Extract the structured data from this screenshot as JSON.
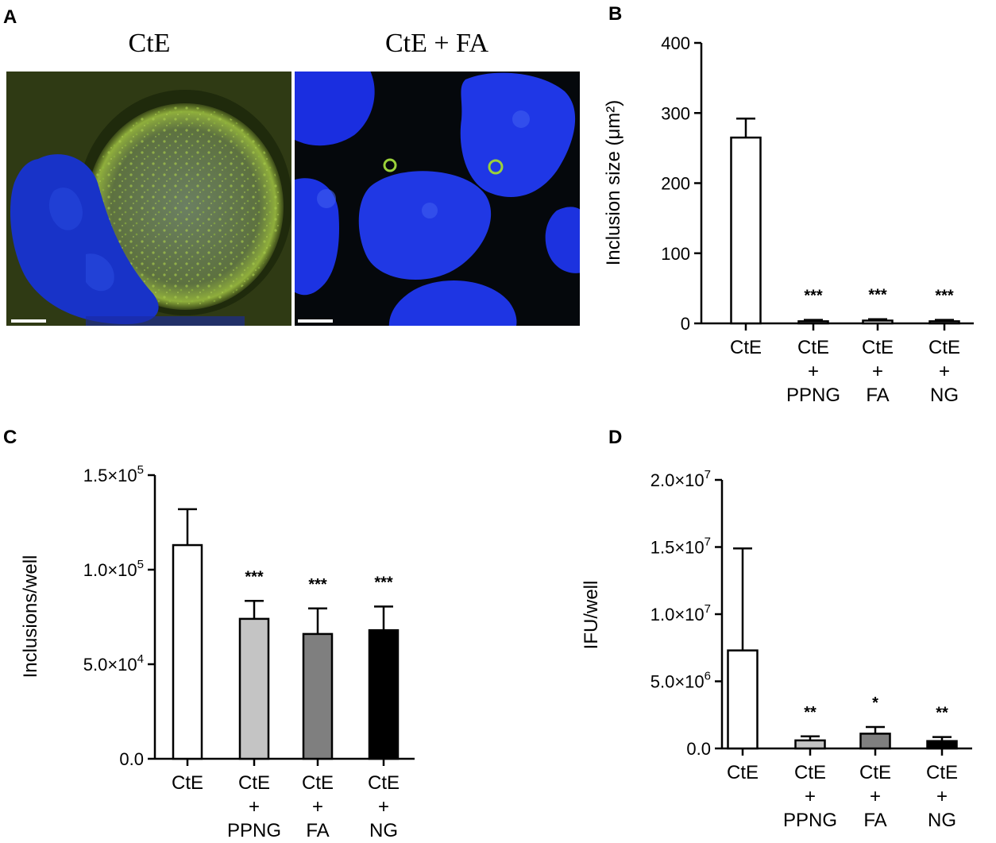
{
  "panels": {
    "A": "A",
    "B": "B",
    "C": "C",
    "D": "D"
  },
  "micrographs": [
    {
      "title": "CtE",
      "stain_colors": {
        "nucleus": "#1833c8",
        "inclusion": "#8fae3c"
      }
    },
    {
      "title": "CtE + FA",
      "stain_colors": {
        "nucleus": "#1a2ee0",
        "inclusion": "#9bd13a"
      }
    }
  ],
  "chart_data": [
    {
      "id": "B",
      "type": "bar",
      "ylabel": "Inclusion size (μm²)",
      "ylim": [
        0,
        400
      ],
      "yticks": [
        "0",
        "100",
        "200",
        "300",
        "400"
      ],
      "ytick_values": [
        0,
        100,
        200,
        300,
        400
      ],
      "categories": [
        [
          "CtE"
        ],
        [
          "CtE",
          "+",
          "PPNG"
        ],
        [
          "CtE",
          "+",
          "FA"
        ],
        [
          "CtE",
          "+",
          "NG"
        ]
      ],
      "values": [
        265,
        3,
        4,
        3
      ],
      "errors": [
        27,
        2,
        2,
        2
      ],
      "significance": [
        "",
        "***",
        "***",
        "***"
      ],
      "bar_colors": [
        "#ffffff",
        "#ffffff",
        "#ffffff",
        "#ffffff"
      ]
    },
    {
      "id": "C",
      "type": "bar",
      "ylabel": "Inclusions/well",
      "ylim": [
        0,
        150000
      ],
      "yticks": [
        [
          "0.0",
          ""
        ],
        [
          "5.0×10",
          "4"
        ],
        [
          "1.0×10",
          "5"
        ],
        [
          "1.5×10",
          "5"
        ]
      ],
      "ytick_values": [
        0,
        50000,
        100000,
        150000
      ],
      "categories": [
        [
          "CtE"
        ],
        [
          "CtE",
          "+",
          "PPNG"
        ],
        [
          "CtE",
          "+",
          "FA"
        ],
        [
          "CtE",
          "+",
          "NG"
        ]
      ],
      "values": [
        113000,
        74000,
        66000,
        68000
      ],
      "errors": [
        19000,
        9500,
        13500,
        12500
      ],
      "significance": [
        "",
        "***",
        "***",
        "***"
      ],
      "bar_colors": [
        "#ffffff",
        "#c4c4c4",
        "#7f7f7f",
        "#000000"
      ]
    },
    {
      "id": "D",
      "type": "bar",
      "ylabel": "IFU/well",
      "ylim": [
        0,
        20000000
      ],
      "yticks": [
        [
          "0.0",
          ""
        ],
        [
          "5.0×10",
          "6"
        ],
        [
          "1.0×10",
          "7"
        ],
        [
          "1.5×10",
          "7"
        ],
        [
          "2.0×10",
          "7"
        ]
      ],
      "ytick_values": [
        0,
        5000000,
        10000000,
        15000000,
        20000000
      ],
      "categories": [
        [
          "CtE"
        ],
        [
          "CtE",
          "+",
          "PPNG"
        ],
        [
          "CtE",
          "+",
          "FA"
        ],
        [
          "CtE",
          "+",
          "NG"
        ]
      ],
      "values": [
        7300000,
        600000,
        1100000,
        550000
      ],
      "errors": [
        7600000,
        300000,
        500000,
        300000
      ],
      "significance": [
        "",
        "**",
        "*",
        "**"
      ],
      "bar_colors": [
        "#ffffff",
        "#c4c4c4",
        "#7f7f7f",
        "#000000"
      ]
    }
  ]
}
